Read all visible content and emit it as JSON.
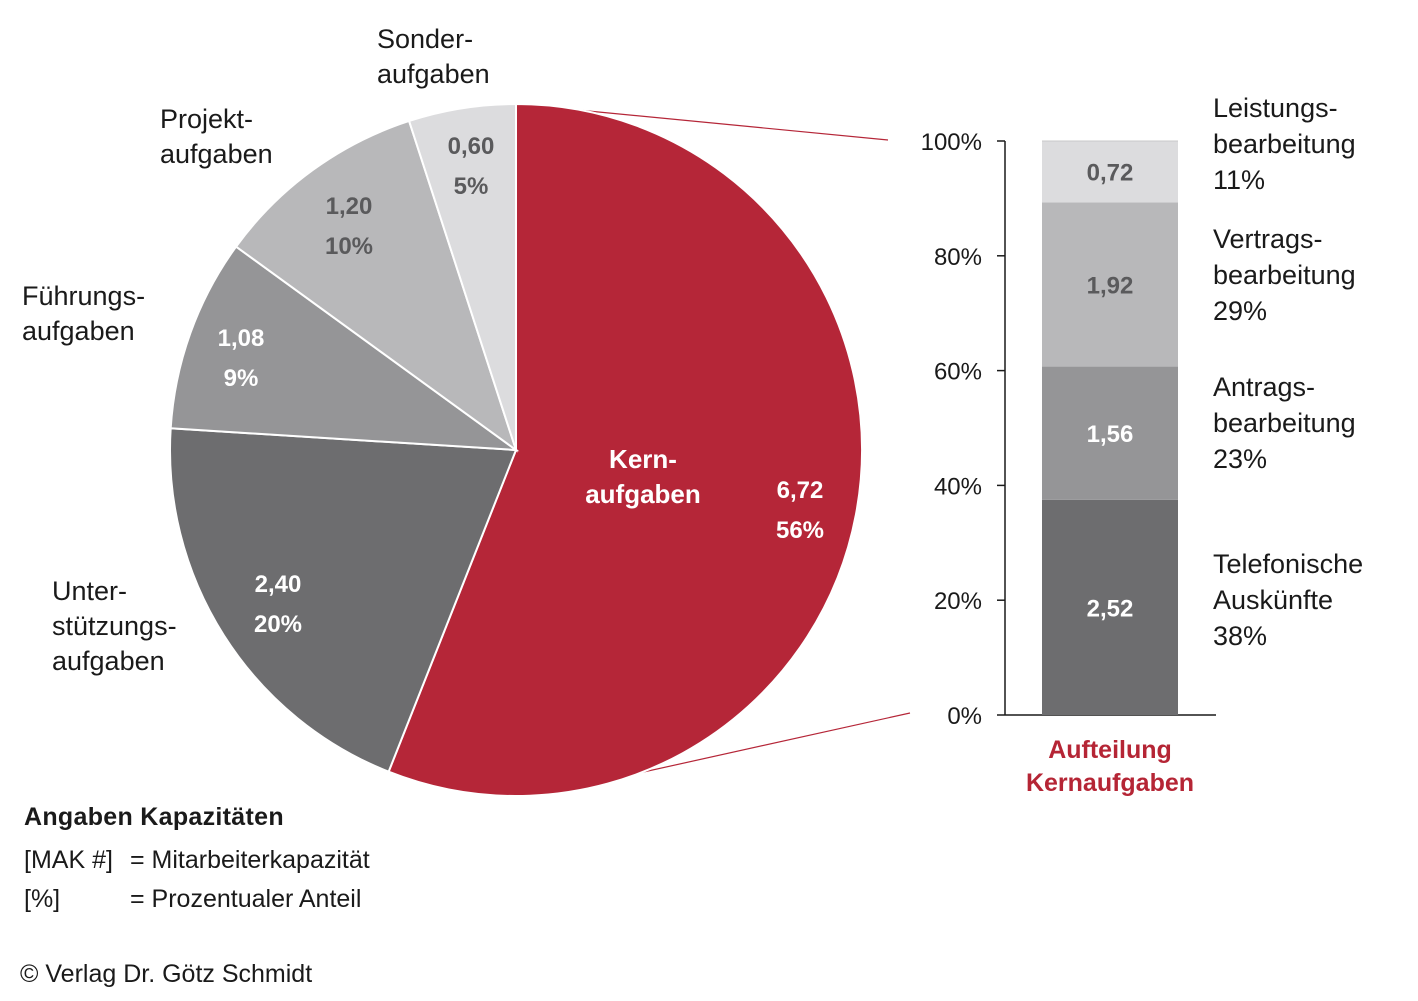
{
  "chart_data": [
    {
      "type": "pie",
      "title": "",
      "slices": [
        {
          "label": [
            "Kern-",
            "aufgaben"
          ],
          "value": 6.72,
          "value_label": "6,72",
          "percent_label": "56%",
          "color": "#b52638"
        },
        {
          "label": [
            "Unter-",
            "stützungs-",
            "aufgaben"
          ],
          "value": 2.4,
          "value_label": "2,40",
          "percent_label": "20%",
          "color": "#6d6d6f"
        },
        {
          "label": [
            "Führungs-",
            "aufgaben"
          ],
          "value": 1.08,
          "value_label": "1,08",
          "percent_label": "9%",
          "color": "#959597"
        },
        {
          "label": [
            "Projekt-",
            "aufgaben"
          ],
          "value": 1.2,
          "value_label": "1,20",
          "percent_label": "10%",
          "color": "#b8b8ba"
        },
        {
          "label": [
            "Sonder-",
            "aufgaben"
          ],
          "value": 0.6,
          "value_label": "0,60",
          "percent_label": "5%",
          "color": "#dcdcde"
        }
      ]
    },
    {
      "type": "bar",
      "stacked": true,
      "title": [
        "Aufteilung",
        "Kernaufgaben"
      ],
      "ylim": [
        0,
        100
      ],
      "yticks": [
        "0%",
        "20%",
        "40%",
        "60%",
        "80%",
        "100%"
      ],
      "segments": [
        {
          "label": [
            "Telefonische",
            "Auskünfte"
          ],
          "value": 2.52,
          "value_label": "2,52",
          "percent": 37.5,
          "percent_label": "38%",
          "color": "#6d6d6f"
        },
        {
          "label": [
            "Antrags-",
            "bearbeitung"
          ],
          "value": 1.56,
          "value_label": "1,56",
          "percent": 23.2,
          "percent_label": "23%",
          "color": "#959597"
        },
        {
          "label": [
            "Vertrags-",
            "bearbeitung"
          ],
          "value": 1.92,
          "value_label": "1,92",
          "percent": 28.6,
          "percent_label": "29%",
          "color": "#b8b8ba"
        },
        {
          "label": [
            "Leistungs-",
            "bearbeitung"
          ],
          "value": 0.72,
          "value_label": "0,72",
          "percent": 10.7,
          "percent_label": "11%",
          "color": "#dcdcde"
        }
      ]
    }
  ],
  "legend": {
    "title": "Angaben Kapazitäten",
    "rows": [
      {
        "key": "[MAK #]",
        "desc": "= Mitarbeiterkapazität"
      },
      {
        "key": "[%]",
        "desc": "= Prozentualer  Anteil"
      }
    ]
  },
  "copyright": "© Verlag Dr. Götz Schmidt"
}
